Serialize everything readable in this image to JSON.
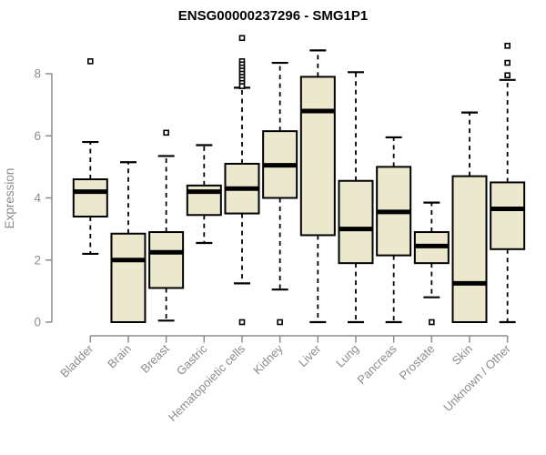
{
  "title": "ENSG00000237296 - SMG1P1",
  "chart_data": {
    "type": "boxplot",
    "title": "ENSG00000237296 - SMG1P1",
    "xlabel": "",
    "ylabel": "Expression",
    "ylim": [
      0,
      8
    ],
    "yticks": [
      0,
      2,
      4,
      6,
      8
    ],
    "grid": false,
    "legend": false,
    "categories": [
      "Bladder",
      "Brain",
      "Breast",
      "Gastric",
      "Hematopoietic cells",
      "Kidney",
      "Liver",
      "Lung",
      "Pancreas",
      "Prostate",
      "Skin",
      "Unknown / Other"
    ],
    "series": [
      {
        "category": "Bladder",
        "low": 2.2,
        "q1": 3.4,
        "median": 4.2,
        "q3": 4.6,
        "high": 5.8,
        "outliers": [
          8.4
        ]
      },
      {
        "category": "Brain",
        "low": 0.0,
        "q1": 0.0,
        "median": 2.0,
        "q3": 2.85,
        "high": 5.15,
        "outliers": []
      },
      {
        "category": "Breast",
        "low": 0.05,
        "q1": 1.1,
        "median": 2.25,
        "q3": 2.9,
        "high": 5.35,
        "outliers": [
          6.1
        ]
      },
      {
        "category": "Gastric",
        "low": 2.55,
        "q1": 3.45,
        "median": 4.2,
        "q3": 4.4,
        "high": 5.7,
        "outliers": []
      },
      {
        "category": "Hematopoietic cells",
        "low": 1.25,
        "q1": 3.5,
        "median": 4.3,
        "q3": 5.1,
        "high": 7.55,
        "outliers": [
          9.15,
          8.4,
          8.3,
          8.2,
          8.1,
          8.0,
          7.9,
          7.8,
          7.7,
          7.6,
          0.0
        ]
      },
      {
        "category": "Kidney",
        "low": 1.05,
        "q1": 4.0,
        "median": 5.05,
        "q3": 6.15,
        "high": 8.35,
        "outliers": [
          0.0
        ]
      },
      {
        "category": "Liver",
        "low": 0.0,
        "q1": 2.8,
        "median": 6.8,
        "q3": 7.9,
        "high": 8.75,
        "outliers": []
      },
      {
        "category": "Lung",
        "low": 0.0,
        "q1": 1.9,
        "median": 3.0,
        "q3": 4.55,
        "high": 8.05,
        "outliers": []
      },
      {
        "category": "Pancreas",
        "low": 0.0,
        "q1": 2.15,
        "median": 3.55,
        "q3": 5.0,
        "high": 5.95,
        "outliers": []
      },
      {
        "category": "Prostate",
        "low": 0.8,
        "q1": 1.9,
        "median": 2.45,
        "q3": 2.9,
        "high": 3.85,
        "outliers": [
          0.0
        ]
      },
      {
        "category": "Skin",
        "low": 0.0,
        "q1": 0.0,
        "median": 1.25,
        "q3": 4.7,
        "high": 6.75,
        "outliers": []
      },
      {
        "category": "Unknown / Other",
        "low": 0.0,
        "q1": 2.35,
        "median": 3.65,
        "q3": 4.5,
        "high": 7.8,
        "outliers": [
          8.9,
          8.35,
          7.95
        ]
      }
    ],
    "colors": {
      "box_fill": "#ECE8CD",
      "box_stroke": "#000000",
      "median": "#000000",
      "whisker": "#000000",
      "outlier_fill": "#ffffff",
      "axis": "#8C8C8C",
      "title": "#000000",
      "background": "#ffffff"
    }
  }
}
